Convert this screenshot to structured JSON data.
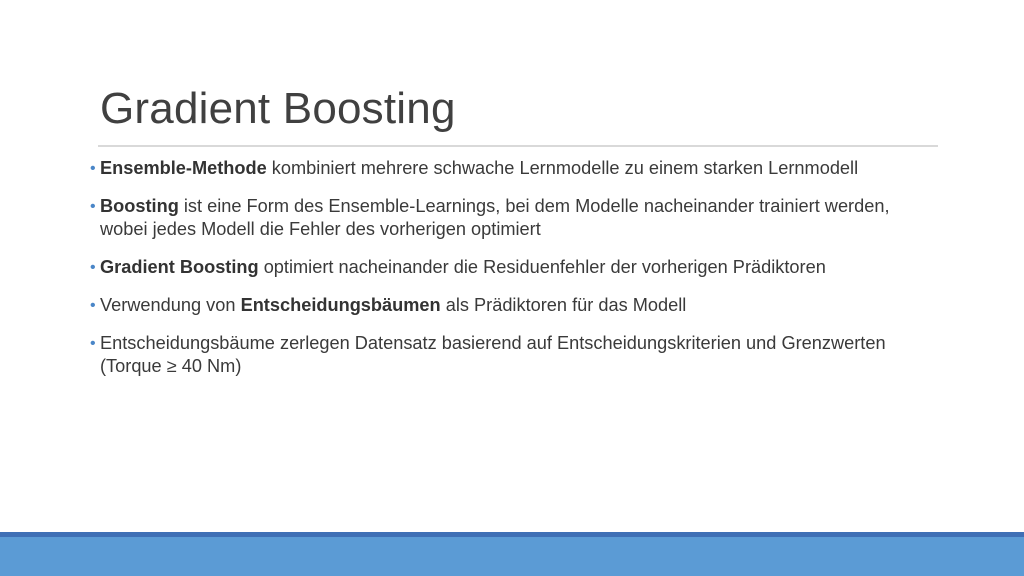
{
  "slide": {
    "title": "Gradient Boosting",
    "bullet_marker": "•",
    "bullets": [
      {
        "bold": "Ensemble-Methode",
        "rest": " kombiniert mehrere schwache Lernmodelle zu einem starken Lernmodell"
      },
      {
        "bold": "Boosting",
        "rest": " ist eine Form des Ensemble-Learnings, bei dem Modelle nacheinander trainiert werden, wobei jedes Modell die Fehler des vorherigen optimiert"
      },
      {
        "bold": "Gradient Boosting",
        "rest": " optimiert nacheinander die Residuenfehler der vorherigen Prädiktoren"
      },
      {
        "pre": "Verwendung von ",
        "bold": "Entscheidungsbäumen",
        "rest": " als Prädiktoren für das Modell"
      },
      {
        "pre": "Entscheidungsbäume zerlegen Datensatz basierend auf Entscheidungskriterien und Grenzwerten (Torque ≥ 40 Nm)"
      }
    ]
  },
  "colors": {
    "accent": "#5b9bd5",
    "accent_dark": "#3f6fb5",
    "bullet": "#4a86c8",
    "title": "#404040"
  }
}
